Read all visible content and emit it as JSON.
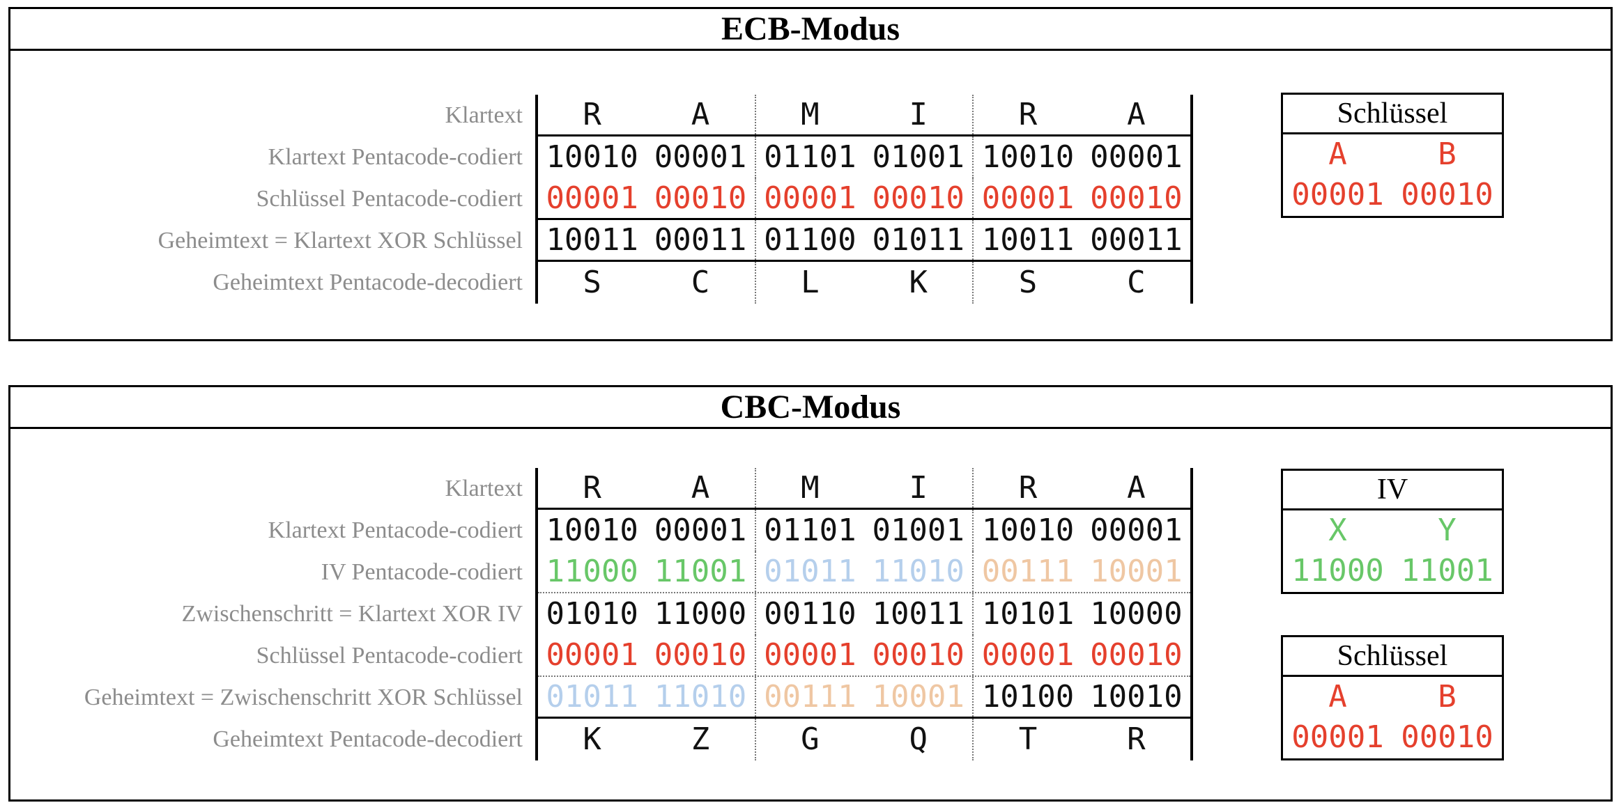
{
  "colors": {
    "black": "#111111",
    "red": "#e5402d",
    "green": "#68c768",
    "blue": "#b5cfec",
    "tan": "#efc7a3",
    "label_gray": "#8c8c8c"
  },
  "panels": [
    {
      "id": "ecb",
      "title": "ECB-Modus",
      "rows": [
        {
          "label": "Klartext",
          "kind": "letters",
          "line": "solid",
          "groups": [
            {
              "color": "black",
              "values": [
                "R",
                "A"
              ]
            },
            {
              "color": "black",
              "values": [
                "M",
                "I"
              ]
            },
            {
              "color": "black",
              "values": [
                "R",
                "A"
              ]
            }
          ]
        },
        {
          "label": "Klartext Pentacode-codiert",
          "kind": "code",
          "line": "none",
          "groups": [
            {
              "color": "black",
              "values": [
                "10010",
                "00001"
              ]
            },
            {
              "color": "black",
              "values": [
                "01101",
                "01001"
              ]
            },
            {
              "color": "black",
              "values": [
                "10010",
                "00001"
              ]
            }
          ]
        },
        {
          "label": "Schlüssel Pentacode-codiert",
          "kind": "code",
          "line": "solid",
          "groups": [
            {
              "color": "red",
              "values": [
                "00001",
                "00010"
              ]
            },
            {
              "color": "red",
              "values": [
                "00001",
                "00010"
              ]
            },
            {
              "color": "red",
              "values": [
                "00001",
                "00010"
              ]
            }
          ]
        },
        {
          "label": "Geheimtext = Klartext XOR Schlüssel",
          "kind": "code",
          "line": "solid",
          "groups": [
            {
              "color": "black",
              "values": [
                "10011",
                "00011"
              ]
            },
            {
              "color": "black",
              "values": [
                "01100",
                "01011"
              ]
            },
            {
              "color": "black",
              "values": [
                "10011",
                "00011"
              ]
            }
          ]
        },
        {
          "label": "Geheimtext Pentacode-decodiert",
          "kind": "letters",
          "line": "none",
          "groups": [
            {
              "color": "black",
              "values": [
                "S",
                "C"
              ]
            },
            {
              "color": "black",
              "values": [
                "L",
                "K"
              ]
            },
            {
              "color": "black",
              "values": [
                "S",
                "C"
              ]
            }
          ]
        }
      ],
      "boxes": [
        {
          "title": "Schlüssel",
          "color": "red",
          "letters": [
            "A",
            "B"
          ],
          "codes": [
            "00001",
            "00010"
          ]
        }
      ]
    },
    {
      "id": "cbc",
      "title": "CBC-Modus",
      "rows": [
        {
          "label": "Klartext",
          "kind": "letters",
          "line": "solid",
          "groups": [
            {
              "color": "black",
              "values": [
                "R",
                "A"
              ]
            },
            {
              "color": "black",
              "values": [
                "M",
                "I"
              ]
            },
            {
              "color": "black",
              "values": [
                "R",
                "A"
              ]
            }
          ]
        },
        {
          "label": "Klartext Pentacode-codiert",
          "kind": "code",
          "line": "none",
          "groups": [
            {
              "color": "black",
              "values": [
                "10010",
                "00001"
              ]
            },
            {
              "color": "black",
              "values": [
                "01101",
                "01001"
              ]
            },
            {
              "color": "black",
              "values": [
                "10010",
                "00001"
              ]
            }
          ]
        },
        {
          "label": "IV Pentacode-codiert",
          "kind": "code",
          "line": "dotted",
          "groups": [
            {
              "color": "green",
              "values": [
                "11000",
                "11001"
              ]
            },
            {
              "color": "blue",
              "values": [
                "01011",
                "11010"
              ]
            },
            {
              "color": "tan",
              "values": [
                "00111",
                "10001"
              ]
            }
          ]
        },
        {
          "label": "Zwischenschritt = Klartext XOR IV",
          "kind": "code",
          "line": "none",
          "groups": [
            {
              "color": "black",
              "values": [
                "01010",
                "11000"
              ]
            },
            {
              "color": "black",
              "values": [
                "00110",
                "10011"
              ]
            },
            {
              "color": "black",
              "values": [
                "10101",
                "10000"
              ]
            }
          ]
        },
        {
          "label": "Schlüssel Pentacode-codiert",
          "kind": "code",
          "line": "dotted",
          "groups": [
            {
              "color": "red",
              "values": [
                "00001",
                "00010"
              ]
            },
            {
              "color": "red",
              "values": [
                "00001",
                "00010"
              ]
            },
            {
              "color": "red",
              "values": [
                "00001",
                "00010"
              ]
            }
          ]
        },
        {
          "label": "Geheimtext = Zwischenschritt XOR Schlüssel",
          "kind": "code",
          "line": "solid",
          "groups": [
            {
              "color": "blue",
              "values": [
                "01011",
                "11010"
              ]
            },
            {
              "color": "tan",
              "values": [
                "00111",
                "10001"
              ]
            },
            {
              "color": "black",
              "values": [
                "10100",
                "10010"
              ]
            }
          ]
        },
        {
          "label": "Geheimtext Pentacode-decodiert",
          "kind": "letters",
          "line": "none",
          "groups": [
            {
              "color": "black",
              "values": [
                "K",
                "Z"
              ]
            },
            {
              "color": "black",
              "values": [
                "G",
                "Q"
              ]
            },
            {
              "color": "black",
              "values": [
                "T",
                "R"
              ]
            }
          ]
        }
      ],
      "boxes": [
        {
          "title": "IV",
          "color": "green",
          "letters": [
            "X",
            "Y"
          ],
          "codes": [
            "11000",
            "11001"
          ]
        },
        {
          "title": "Schlüssel",
          "color": "red",
          "letters": [
            "A",
            "B"
          ],
          "codes": [
            "00001",
            "00010"
          ]
        }
      ]
    }
  ]
}
